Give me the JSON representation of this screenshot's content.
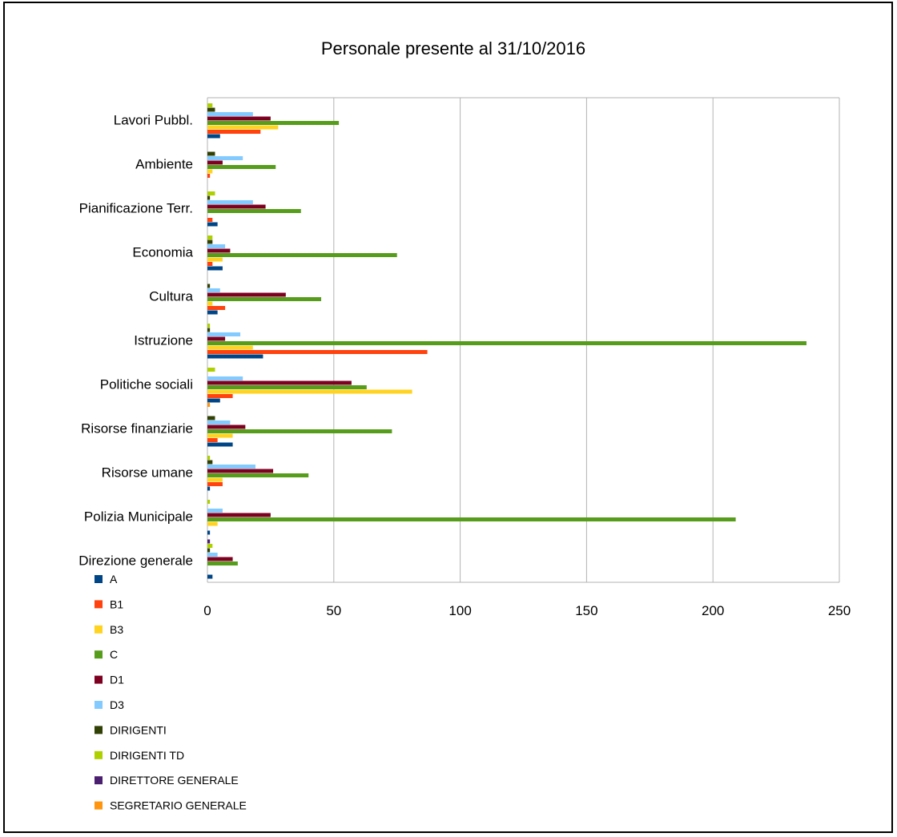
{
  "chart_data": {
    "type": "bar",
    "orientation": "horizontal",
    "title": "Personale presente al 31/10/2016",
    "xlabel": "",
    "ylabel": "",
    "xlim": [
      0,
      250
    ],
    "x_ticks": [
      0,
      50,
      100,
      150,
      200,
      250
    ],
    "grid": "vertical",
    "legend_position": "bottom-left",
    "categories": [
      "Direzione generale",
      "Polizia Municipale",
      "Risorse umane",
      "Risorse finanziarie",
      "Politiche sociali",
      "Istruzione",
      "Cultura",
      "Economia",
      "Pianificazione Terr.",
      "Ambiente",
      "Lavori Pubbl."
    ],
    "series": [
      {
        "name": "A",
        "color": "#004586",
        "values": [
          2,
          1,
          1,
          10,
          5,
          22,
          4,
          6,
          4,
          0,
          5
        ]
      },
      {
        "name": "B1",
        "color": "#ff420e",
        "values": [
          0,
          0,
          6,
          4,
          10,
          87,
          7,
          2,
          2,
          1,
          21
        ]
      },
      {
        "name": "B3",
        "color": "#ffd320",
        "values": [
          0,
          4,
          6,
          10,
          81,
          18,
          2,
          6,
          0,
          2,
          28
        ]
      },
      {
        "name": "C",
        "color": "#579d1c",
        "values": [
          12,
          209,
          40,
          73,
          63,
          237,
          45,
          75,
          37,
          27,
          52
        ]
      },
      {
        "name": "D1",
        "color": "#7e0021",
        "values": [
          10,
          25,
          26,
          15,
          57,
          7,
          31,
          9,
          23,
          6,
          25
        ]
      },
      {
        "name": "D3",
        "color": "#83caff",
        "values": [
          4,
          6,
          19,
          9,
          14,
          13,
          5,
          7,
          18,
          14,
          18
        ]
      },
      {
        "name": "DIRIGENTI",
        "color": "#314004",
        "values": [
          1,
          0,
          2,
          3,
          0,
          1,
          1,
          2,
          1,
          3,
          3
        ]
      },
      {
        "name": "DIRIGENTI TD",
        "color": "#aecf00",
        "values": [
          2,
          1,
          1,
          0,
          3,
          1,
          0,
          2,
          3,
          0,
          2
        ]
      },
      {
        "name": "DIRETTORE GENERALE",
        "color": "#4b1f6f",
        "values": [
          1,
          0,
          0,
          0,
          0,
          0,
          0,
          0,
          0,
          0,
          0
        ]
      },
      {
        "name": "SEGRETARIO GENERALE",
        "color": "#ff950e",
        "values": [
          0,
          0,
          0,
          1,
          0,
          0,
          0,
          0,
          0,
          0,
          0
        ]
      }
    ]
  }
}
